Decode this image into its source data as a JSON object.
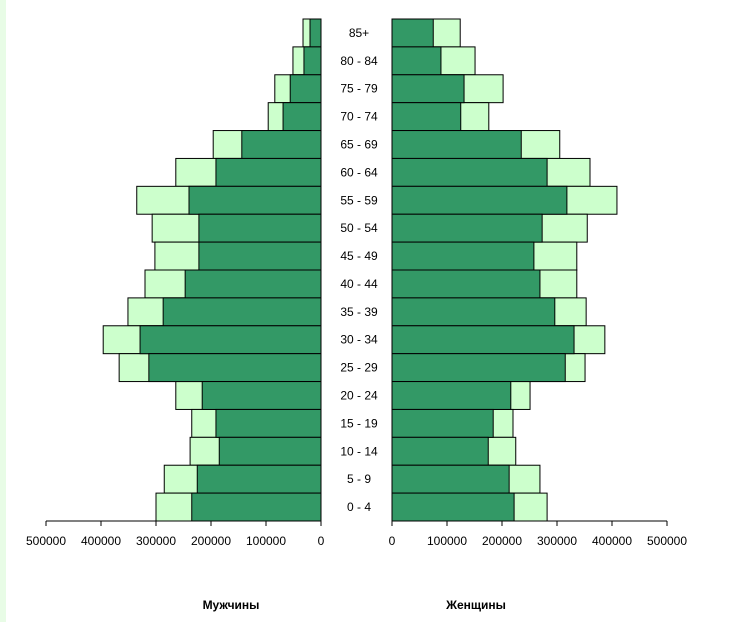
{
  "chart_data": {
    "type": "bar",
    "subtype": "population-pyramid",
    "categories": [
      "85+",
      "80 - 84",
      "75 - 79",
      "70 - 74",
      "65 - 69",
      "60 - 64",
      "55 - 59",
      "50 - 54",
      "45 - 49",
      "40 - 44",
      "35 - 39",
      "30 - 34",
      "25 - 29",
      "20 - 24",
      "15 - 19",
      "10 - 14",
      "5  -  9",
      "0  -  4"
    ],
    "panels": [
      {
        "title": "Мужчины",
        "direction": "left",
        "xlim": [
          0,
          500000
        ],
        "ticks": [
          "0",
          "100000",
          "200000",
          "300000",
          "400000",
          "500000"
        ],
        "series": [
          {
            "name": "total",
            "values": [
              32700,
              51000,
              84000,
              96000,
              196000,
              264000,
              335000,
              307000,
              302000,
              320000,
              351000,
              396000,
              367000,
              264000,
              235000,
              238000,
              285000,
              300000
            ]
          },
          {
            "name": "part",
            "values": [
              20000,
              31000,
              56000,
              69000,
              144000,
              191000,
              240000,
              222000,
              222000,
              247000,
              287000,
              329000,
              313000,
              216000,
              191000,
              185000,
              225000,
              235000
            ]
          }
        ]
      },
      {
        "title": "Женщины",
        "direction": "right",
        "xlim": [
          0,
          500000
        ],
        "ticks": [
          "0",
          "100000",
          "200000",
          "300000",
          "400000",
          "500000"
        ],
        "series": [
          {
            "name": "total",
            "values": [
              124000,
              151000,
              202000,
              176000,
              305000,
              360000,
              409000,
              355000,
              336000,
              336000,
              353000,
              387000,
              351000,
              251000,
              220000,
              225000,
              269000,
              282000
            ]
          },
          {
            "name": "part",
            "values": [
              75000,
              89000,
              131000,
              125000,
              235000,
              282000,
              318000,
              273000,
              258000,
              269000,
              296000,
              331000,
              315000,
              216000,
              184000,
              175000,
              213000,
              222000
            ]
          }
        ]
      }
    ],
    "colors": {
      "total": "#ccffcc",
      "part": "#339966",
      "border": "#000000"
    }
  }
}
